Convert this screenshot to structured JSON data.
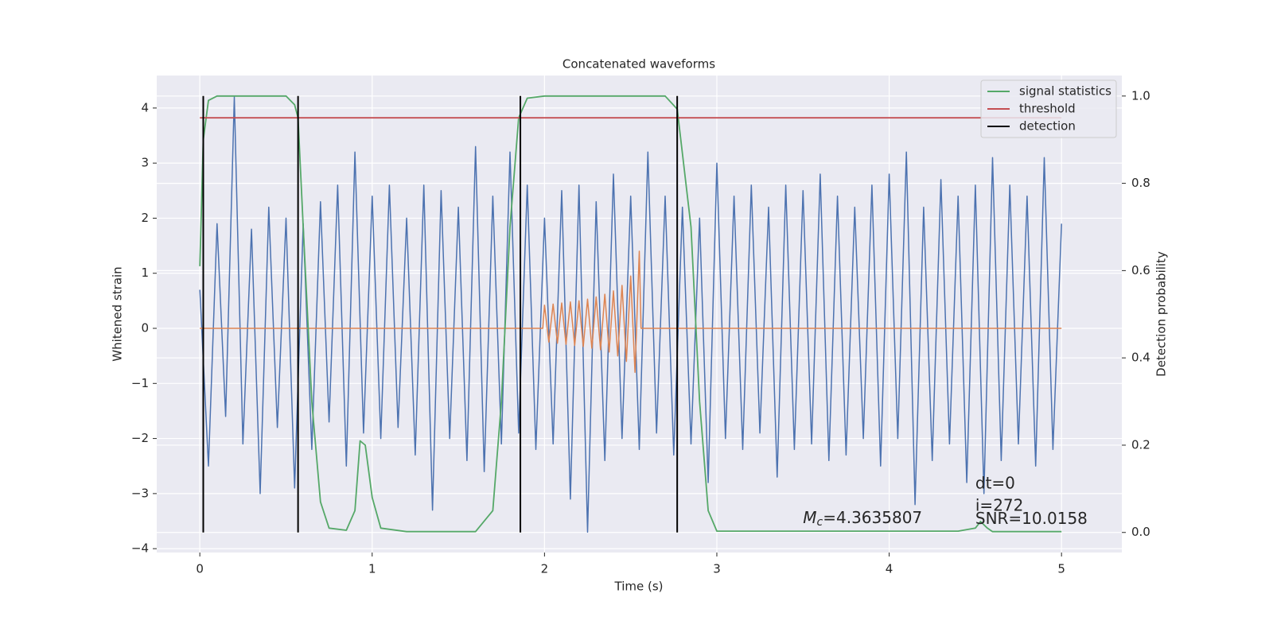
{
  "chart_data": {
    "type": "line",
    "title": "Concatenated waveforms",
    "xlabel": "Time (s)",
    "ylabel": "Whitened strain",
    "y2label": "Detection probability",
    "xlim": [
      -0.25,
      5.35
    ],
    "ylim": [
      -4.07,
      4.59
    ],
    "y2lim": [
      -0.046,
      1.047
    ],
    "xticks": [
      0,
      1,
      2,
      3,
      4,
      5
    ],
    "yticks": [
      {
        "value": -4,
        "label": "−4"
      },
      {
        "value": -3,
        "label": "−3"
      },
      {
        "value": -2,
        "label": "−2"
      },
      {
        "value": -1,
        "label": "−1"
      },
      0,
      1,
      2,
      3,
      4
    ],
    "y2ticks": [
      {
        "value": 0,
        "label": "0.0"
      },
      0.2,
      0.4,
      0.6,
      0.8,
      {
        "value": 1,
        "label": "1.0"
      }
    ],
    "grid": true,
    "legend": "upper right",
    "series": [
      {
        "color": "#4c72b0",
        "x": [
          0,
          0.05,
          0.1,
          0.15,
          0.2,
          0.25,
          0.3,
          0.35,
          0.4,
          0.45,
          0.5,
          0.55,
          0.6,
          0.65,
          0.7,
          0.75,
          0.8,
          0.85,
          0.9,
          0.95,
          1,
          1.05,
          1.1,
          1.15,
          1.2,
          1.25,
          1.3,
          1.35,
          1.4,
          1.45,
          1.5,
          1.55,
          1.6,
          1.65,
          1.7,
          1.75,
          1.8,
          1.85,
          1.9,
          1.95,
          2,
          2.05,
          2.1,
          2.15,
          2.2,
          2.25,
          2.3,
          2.35,
          2.4,
          2.45,
          2.5,
          2.55,
          2.6,
          2.65,
          2.7,
          2.75,
          2.8,
          2.85,
          2.9,
          2.95,
          3,
          3.05,
          3.1,
          3.15,
          3.2,
          3.25,
          3.3,
          3.35,
          3.4,
          3.45,
          3.5,
          3.55,
          3.6,
          3.65,
          3.7,
          3.75,
          3.8,
          3.85,
          3.9,
          3.95,
          4,
          4.05,
          4.1,
          4.15,
          4.2,
          4.25,
          4.3,
          4.35,
          4.4,
          4.45,
          4.5,
          4.55,
          4.6,
          4.65,
          4.7,
          4.75,
          4.8,
          4.85,
          4.9,
          4.95,
          5
        ],
        "values": [
          0.7,
          -2.5,
          1.9,
          -1.6,
          4.2,
          -2.1,
          1.8,
          -3.0,
          2.2,
          -1.8,
          2.0,
          -2.9,
          1.9,
          -2.2,
          2.3,
          -1.7,
          2.6,
          -2.5,
          3.2,
          -1.9,
          2.4,
          -2.0,
          2.6,
          -1.8,
          2.0,
          -2.3,
          2.6,
          -3.3,
          2.5,
          -2.0,
          2.2,
          -2.4,
          3.3,
          -2.6,
          2.4,
          -2.1,
          3.2,
          -1.9,
          2.6,
          -2.2,
          2.0,
          -2.1,
          2.5,
          -3.1,
          2.6,
          -3.7,
          2.3,
          -2.4,
          2.8,
          -2.0,
          2.4,
          -2.2,
          3.2,
          -1.9,
          2.4,
          -2.3,
          2.2,
          -2.1,
          2.0,
          -2.8,
          3.0,
          -2.0,
          2.4,
          -2.2,
          2.6,
          -1.9,
          2.2,
          -2.7,
          2.6,
          -2.2,
          2.5,
          -2.1,
          2.8,
          -2.4,
          2.4,
          -2.3,
          2.2,
          -2.0,
          2.6,
          -2.5,
          2.8,
          -2.0,
          3.2,
          -3.2,
          2.2,
          -2.4,
          2.7,
          -2.1,
          2.4,
          -2.8,
          2.6,
          -3.0,
          3.1,
          -2.4,
          2.6,
          -2.1,
          2.4,
          -2.5,
          3.1,
          -2.2,
          1.9
        ]
      },
      {
        "color": "#dd8452",
        "x": [
          0,
          1.99,
          2.0,
          2.025,
          2.05,
          2.075,
          2.1,
          2.125,
          2.15,
          2.175,
          2.2,
          2.225,
          2.25,
          2.275,
          2.3,
          2.325,
          2.35,
          2.375,
          2.4,
          2.425,
          2.45,
          2.475,
          2.5,
          2.525,
          2.55,
          2.56,
          5
        ],
        "values": [
          0,
          0,
          0.42,
          -0.25,
          0.44,
          -0.27,
          0.46,
          -0.29,
          0.48,
          -0.31,
          0.5,
          -0.33,
          0.53,
          -0.36,
          0.57,
          -0.39,
          0.62,
          -0.43,
          0.68,
          -0.5,
          0.78,
          -0.6,
          0.95,
          -0.8,
          1.4,
          0,
          0
        ]
      },
      {
        "name": "signal statistics",
        "color": "#55a868",
        "axis": "y2",
        "x": [
          0,
          0.02,
          0.05,
          0.1,
          0.5,
          0.55,
          0.57,
          0.6,
          0.65,
          0.7,
          0.75,
          0.85,
          0.9,
          0.93,
          0.96,
          1.0,
          1.05,
          1.2,
          1.6,
          1.7,
          1.75,
          1.8,
          1.85,
          1.9,
          2.0,
          2.7,
          2.77,
          2.85,
          2.9,
          2.95,
          3.0,
          4.4,
          4.5,
          4.53,
          4.57,
          4.6,
          5.0
        ],
        "values": [
          0.61,
          0.9,
          0.99,
          1.0,
          1.0,
          0.98,
          0.95,
          0.7,
          0.3,
          0.07,
          0.01,
          0.005,
          0.05,
          0.21,
          0.2,
          0.08,
          0.01,
          0.002,
          0.002,
          0.05,
          0.3,
          0.7,
          0.95,
          0.995,
          1.0,
          1.0,
          0.97,
          0.7,
          0.3,
          0.05,
          0.003,
          0.003,
          0.01,
          0.025,
          0.01,
          0.002,
          0.002
        ]
      },
      {
        "name": "threshold",
        "color": "#c44e52",
        "axis": "y2",
        "x": [
          0,
          5
        ],
        "values": [
          0.95,
          0.95
        ]
      },
      {
        "name": "detection",
        "color": "#000000",
        "axis": "y2",
        "kind": "vlines",
        "x": [
          0.02,
          0.57,
          1.86,
          2.77
        ],
        "range": [
          0,
          1
        ]
      }
    ],
    "annotations": [
      {
        "symbol": "M",
        "subscript": "c",
        "text": "=4.3635807"
      },
      {
        "text": "dt=0"
      },
      {
        "text": "i=272"
      },
      {
        "text": "SNR=10.0158"
      }
    ]
  }
}
